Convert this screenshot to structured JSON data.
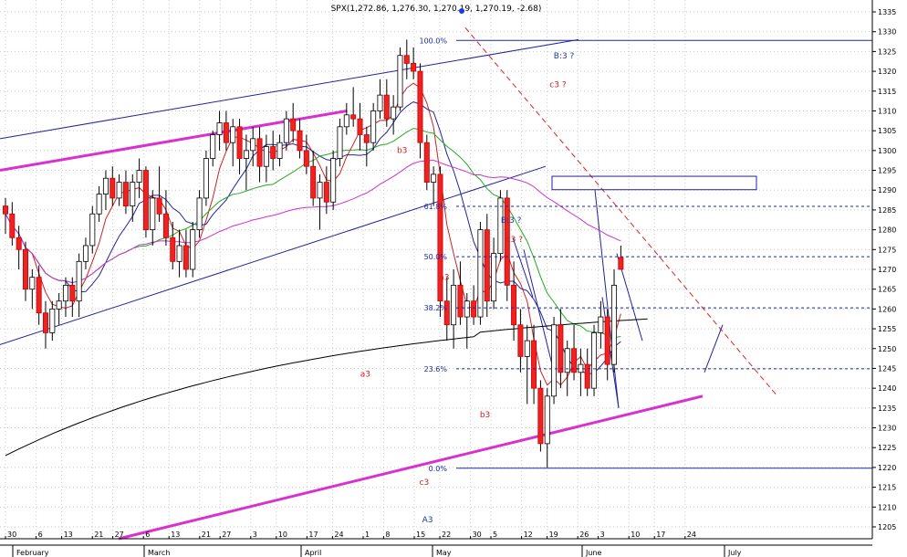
{
  "chart_data": {
    "type": "candlestick",
    "title": "SPX(1,272.86, 1,276.30, 1,270.19, 1,270.19, -2.68)",
    "ylim": [
      1202,
      1338
    ],
    "y_ticks": [
      1205,
      1210,
      1215,
      1220,
      1225,
      1230,
      1235,
      1240,
      1245,
      1250,
      1255,
      1260,
      1265,
      1270,
      1275,
      1280,
      1285,
      1290,
      1295,
      1300,
      1305,
      1310,
      1315,
      1320,
      1325,
      1330,
      1335
    ],
    "x_date_labels": [
      "30",
      "6",
      "13",
      "21",
      "27",
      "6",
      "13",
      "21",
      "27",
      "3",
      "10",
      "17",
      "24",
      "1",
      "8",
      "15",
      "22",
      "30",
      "5",
      "12",
      "19",
      "26",
      "3",
      "10",
      "17",
      "24"
    ],
    "x_month_labels": [
      "February",
      "March",
      "April",
      "May",
      "June",
      "July"
    ],
    "grid": true,
    "fib_levels": [
      {
        "label": "100.0%",
        "value": 1327.8
      },
      {
        "label": "61.8%",
        "value": 1285.9
      },
      {
        "label": "50.0%",
        "value": 1273.2
      },
      {
        "label": "38.2%",
        "value": 1260.3
      },
      {
        "label": "23.6%",
        "value": 1244.9
      },
      {
        "label": "0.0%",
        "value": 1219.8
      }
    ],
    "annotations": [
      {
        "text": "B:3 ?",
        "color": "#1a3a9c",
        "date_slot": 83.5,
        "value": 1323.2
      },
      {
        "text": "c3 ?",
        "color": "#cc2222",
        "date_slot": 82.6,
        "value": 1316
      },
      {
        "text": "b3",
        "color": "#cc2222",
        "date_slot": 59.3,
        "value": 1299.4
      },
      {
        "text": "B:3 ?",
        "color": "#1a3a9c",
        "date_slot": 75.6,
        "value": 1281.8
      },
      {
        "text": "c3 ?",
        "color": "#cc2222",
        "date_slot": 76.1,
        "value": 1276.9
      },
      {
        "text": "a3",
        "color": "#cc2222",
        "date_slot": 65.6,
        "value": 1267.4
      },
      {
        "text": "a3",
        "color": "#cc2222",
        "date_slot": 53.8,
        "value": 1242.9
      },
      {
        "text": "b3",
        "color": "#cc2222",
        "date_slot": 71.7,
        "value": 1232.7
      },
      {
        "text": "c3",
        "color": "#cc2222",
        "date_slot": 62.6,
        "value": 1215.6
      },
      {
        "text": "A3",
        "color": "#1a3a9c",
        "date_slot": 63.1,
        "value": 1206.2
      }
    ],
    "candles": [
      {
        "o": 1286,
        "h": 1288,
        "l": 1279,
        "c": 1284
      },
      {
        "o": 1284,
        "h": 1287,
        "l": 1276,
        "c": 1278
      },
      {
        "o": 1278,
        "h": 1281,
        "l": 1270,
        "c": 1275
      },
      {
        "o": 1275,
        "h": 1277,
        "l": 1262,
        "c": 1265
      },
      {
        "o": 1265,
        "h": 1270,
        "l": 1260,
        "c": 1268
      },
      {
        "o": 1268,
        "h": 1271,
        "l": 1256,
        "c": 1259
      },
      {
        "o": 1259,
        "h": 1262,
        "l": 1250,
        "c": 1254
      },
      {
        "o": 1254,
        "h": 1262,
        "l": 1252,
        "c": 1260
      },
      {
        "o": 1260,
        "h": 1264,
        "l": 1256,
        "c": 1262
      },
      {
        "o": 1262,
        "h": 1268,
        "l": 1258,
        "c": 1266
      },
      {
        "o": 1266,
        "h": 1268,
        "l": 1258,
        "c": 1262
      },
      {
        "o": 1262,
        "h": 1274,
        "l": 1258,
        "c": 1272
      },
      {
        "o": 1272,
        "h": 1278,
        "l": 1270,
        "c": 1276
      },
      {
        "o": 1276,
        "h": 1286,
        "l": 1274,
        "c": 1284
      },
      {
        "o": 1284,
        "h": 1291,
        "l": 1282,
        "c": 1289
      },
      {
        "o": 1289,
        "h": 1295,
        "l": 1285,
        "c": 1293
      },
      {
        "o": 1293,
        "h": 1296,
        "l": 1286,
        "c": 1288
      },
      {
        "o": 1288,
        "h": 1294,
        "l": 1286,
        "c": 1292
      },
      {
        "o": 1292,
        "h": 1295,
        "l": 1284,
        "c": 1286
      },
      {
        "o": 1286,
        "h": 1294,
        "l": 1282,
        "c": 1292
      },
      {
        "o": 1292,
        "h": 1298,
        "l": 1288,
        "c": 1295
      },
      {
        "o": 1295,
        "h": 1296,
        "l": 1278,
        "c": 1280
      },
      {
        "o": 1280,
        "h": 1290,
        "l": 1276,
        "c": 1288
      },
      {
        "o": 1288,
        "h": 1296,
        "l": 1282,
        "c": 1284
      },
      {
        "o": 1284,
        "h": 1290,
        "l": 1276,
        "c": 1278
      },
      {
        "o": 1278,
        "h": 1282,
        "l": 1270,
        "c": 1272
      },
      {
        "o": 1272,
        "h": 1280,
        "l": 1268,
        "c": 1276
      },
      {
        "o": 1276,
        "h": 1280,
        "l": 1268,
        "c": 1270
      },
      {
        "o": 1270,
        "h": 1282,
        "l": 1268,
        "c": 1280
      },
      {
        "o": 1280,
        "h": 1290,
        "l": 1278,
        "c": 1288
      },
      {
        "o": 1288,
        "h": 1300,
        "l": 1286,
        "c": 1298
      },
      {
        "o": 1298,
        "h": 1305,
        "l": 1296,
        "c": 1304
      },
      {
        "o": 1304,
        "h": 1310,
        "l": 1300,
        "c": 1307
      },
      {
        "o": 1307,
        "h": 1310,
        "l": 1300,
        "c": 1302
      },
      {
        "o": 1302,
        "h": 1308,
        "l": 1296,
        "c": 1306
      },
      {
        "o": 1306,
        "h": 1308,
        "l": 1294,
        "c": 1298
      },
      {
        "o": 1298,
        "h": 1304,
        "l": 1290,
        "c": 1300
      },
      {
        "o": 1300,
        "h": 1306,
        "l": 1296,
        "c": 1303
      },
      {
        "o": 1303,
        "h": 1306,
        "l": 1292,
        "c": 1296
      },
      {
        "o": 1296,
        "h": 1304,
        "l": 1292,
        "c": 1301
      },
      {
        "o": 1301,
        "h": 1305,
        "l": 1295,
        "c": 1298
      },
      {
        "o": 1298,
        "h": 1304,
        "l": 1296,
        "c": 1302
      },
      {
        "o": 1302,
        "h": 1310,
        "l": 1300,
        "c": 1308
      },
      {
        "o": 1308,
        "h": 1312,
        "l": 1302,
        "c": 1305
      },
      {
        "o": 1305,
        "h": 1308,
        "l": 1298,
        "c": 1300
      },
      {
        "o": 1300,
        "h": 1304,
        "l": 1294,
        "c": 1296
      },
      {
        "o": 1296,
        "h": 1300,
        "l": 1286,
        "c": 1288
      },
      {
        "o": 1288,
        "h": 1294,
        "l": 1280,
        "c": 1292
      },
      {
        "o": 1292,
        "h": 1296,
        "l": 1284,
        "c": 1287
      },
      {
        "o": 1287,
        "h": 1300,
        "l": 1285,
        "c": 1298
      },
      {
        "o": 1298,
        "h": 1308,
        "l": 1296,
        "c": 1306
      },
      {
        "o": 1306,
        "h": 1312,
        "l": 1304,
        "c": 1309
      },
      {
        "o": 1309,
        "h": 1316,
        "l": 1306,
        "c": 1308
      },
      {
        "o": 1308,
        "h": 1312,
        "l": 1300,
        "c": 1304
      },
      {
        "o": 1304,
        "h": 1306,
        "l": 1296,
        "c": 1302
      },
      {
        "o": 1302,
        "h": 1312,
        "l": 1300,
        "c": 1310
      },
      {
        "o": 1310,
        "h": 1318,
        "l": 1308,
        "c": 1314
      },
      {
        "o": 1314,
        "h": 1318,
        "l": 1306,
        "c": 1308
      },
      {
        "o": 1308,
        "h": 1314,
        "l": 1304,
        "c": 1311
      },
      {
        "o": 1311,
        "h": 1326,
        "l": 1310,
        "c": 1324
      },
      {
        "o": 1324,
        "h": 1328,
        "l": 1318,
        "c": 1322
      },
      {
        "o": 1322,
        "h": 1326,
        "l": 1318,
        "c": 1320
      },
      {
        "o": 1320,
        "h": 1322,
        "l": 1298,
        "c": 1302
      },
      {
        "o": 1302,
        "h": 1304,
        "l": 1290,
        "c": 1292
      },
      {
        "o": 1292,
        "h": 1296,
        "l": 1286,
        "c": 1294
      },
      {
        "o": 1294,
        "h": 1296,
        "l": 1258,
        "c": 1262
      },
      {
        "o": 1262,
        "h": 1268,
        "l": 1252,
        "c": 1256
      },
      {
        "o": 1256,
        "h": 1270,
        "l": 1250,
        "c": 1266
      },
      {
        "o": 1266,
        "h": 1272,
        "l": 1256,
        "c": 1258
      },
      {
        "o": 1258,
        "h": 1264,
        "l": 1250,
        "c": 1262
      },
      {
        "o": 1262,
        "h": 1266,
        "l": 1256,
        "c": 1258
      },
      {
        "o": 1258,
        "h": 1282,
        "l": 1256,
        "c": 1280
      },
      {
        "o": 1280,
        "h": 1284,
        "l": 1258,
        "c": 1262
      },
      {
        "o": 1262,
        "h": 1278,
        "l": 1260,
        "c": 1274
      },
      {
        "o": 1274,
        "h": 1290,
        "l": 1272,
        "c": 1288
      },
      {
        "o": 1288,
        "h": 1290,
        "l": 1262,
        "c": 1266
      },
      {
        "o": 1266,
        "h": 1272,
        "l": 1252,
        "c": 1256
      },
      {
        "o": 1256,
        "h": 1260,
        "l": 1244,
        "c": 1248
      },
      {
        "o": 1248,
        "h": 1256,
        "l": 1236,
        "c": 1252
      },
      {
        "o": 1252,
        "h": 1256,
        "l": 1236,
        "c": 1240
      },
      {
        "o": 1240,
        "h": 1242,
        "l": 1224,
        "c": 1226
      },
      {
        "o": 1226,
        "h": 1240,
        "l": 1220,
        "c": 1238
      },
      {
        "o": 1238,
        "h": 1258,
        "l": 1236,
        "c": 1256
      },
      {
        "o": 1256,
        "h": 1260,
        "l": 1240,
        "c": 1244
      },
      {
        "o": 1244,
        "h": 1252,
        "l": 1238,
        "c": 1250
      },
      {
        "o": 1250,
        "h": 1256,
        "l": 1242,
        "c": 1244
      },
      {
        "o": 1244,
        "h": 1250,
        "l": 1238,
        "c": 1246
      },
      {
        "o": 1246,
        "h": 1250,
        "l": 1238,
        "c": 1240
      },
      {
        "o": 1240,
        "h": 1256,
        "l": 1238,
        "c": 1254
      },
      {
        "o": 1254,
        "h": 1262,
        "l": 1250,
        "c": 1258
      },
      {
        "o": 1258,
        "h": 1260,
        "l": 1242,
        "c": 1246
      },
      {
        "o": 1246,
        "h": 1270,
        "l": 1244,
        "c": 1266
      },
      {
        "o": 1273,
        "h": 1276,
        "l": 1270,
        "c": 1270
      }
    ]
  }
}
